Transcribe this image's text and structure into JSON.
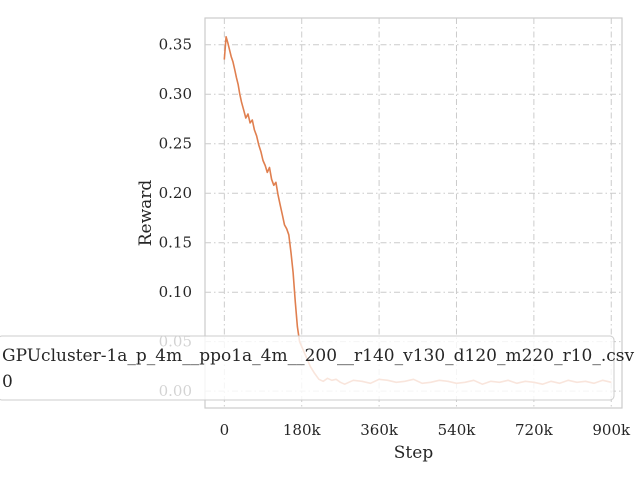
{
  "chart_data": {
    "type": "line",
    "xlabel": "Step",
    "ylabel": "Reward",
    "xlim": [
      -45000,
      925000
    ],
    "ylim": [
      -0.017,
      0.377
    ],
    "x_ticks": [
      0,
      180000,
      360000,
      540000,
      720000,
      900000
    ],
    "x_tick_labels": [
      "0",
      "180k",
      "360k",
      "540k",
      "720k",
      "900k"
    ],
    "y_ticks": [
      0.0,
      0.05,
      0.1,
      0.15,
      0.2,
      0.25,
      0.3,
      0.35
    ],
    "y_tick_labels": [
      "0.00",
      "0.05",
      "0.10",
      "0.15",
      "0.20",
      "0.25",
      "0.30",
      "0.35"
    ],
    "grid": true,
    "legend": {
      "placement": "lower-left",
      "title": "GPUcluster-1a_p_4m__ppo1a_4m__200__r140_v130_d120_m220_r10_.csv",
      "entries": [
        "0"
      ]
    },
    "series": [
      {
        "name": "0",
        "color": "#e07f4f",
        "x": [
          0,
          4000,
          8000,
          12000,
          16000,
          20000,
          24000,
          28000,
          32000,
          36000,
          40000,
          45000,
          50000,
          55000,
          60000,
          65000,
          70000,
          75000,
          80000,
          85000,
          90000,
          95000,
          100000,
          105000,
          110000,
          115000,
          120000,
          125000,
          130000,
          135000,
          140000,
          145000,
          150000,
          155000,
          160000,
          165000,
          170000,
          175000,
          180000,
          190000,
          200000,
          210000,
          220000,
          230000,
          240000,
          250000,
          260000,
          270000,
          280000,
          300000,
          320000,
          340000,
          360000,
          380000,
          400000,
          420000,
          440000,
          460000,
          480000,
          500000,
          520000,
          540000,
          560000,
          580000,
          600000,
          620000,
          640000,
          660000,
          680000,
          700000,
          720000,
          740000,
          760000,
          780000,
          800000,
          820000,
          840000,
          860000,
          880000,
          900000
        ],
        "y": [
          0.335,
          0.358,
          0.352,
          0.345,
          0.338,
          0.333,
          0.325,
          0.317,
          0.31,
          0.3,
          0.292,
          0.284,
          0.276,
          0.28,
          0.271,
          0.274,
          0.264,
          0.258,
          0.249,
          0.242,
          0.233,
          0.228,
          0.221,
          0.226,
          0.214,
          0.208,
          0.211,
          0.198,
          0.188,
          0.178,
          0.168,
          0.164,
          0.158,
          0.14,
          0.12,
          0.09,
          0.065,
          0.05,
          0.045,
          0.035,
          0.025,
          0.018,
          0.012,
          0.01,
          0.013,
          0.011,
          0.012,
          0.009,
          0.007,
          0.011,
          0.01,
          0.008,
          0.012,
          0.011,
          0.009,
          0.01,
          0.012,
          0.008,
          0.009,
          0.011,
          0.01,
          0.008,
          0.009,
          0.011,
          0.007,
          0.01,
          0.009,
          0.011,
          0.008,
          0.01,
          0.009,
          0.007,
          0.01,
          0.008,
          0.011,
          0.009,
          0.01,
          0.008,
          0.011,
          0.009
        ]
      }
    ]
  }
}
